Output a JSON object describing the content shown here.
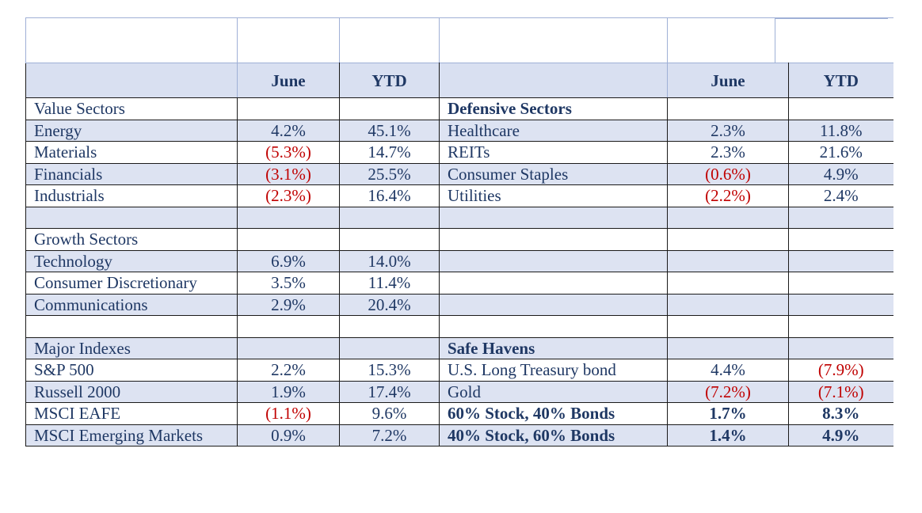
{
  "header": {
    "left_june": "June",
    "left_ytd": "YTD",
    "right_june": "June",
    "right_ytd": "YTD"
  },
  "rows": [
    {
      "shade": false,
      "l": "Value Sectors",
      "lj": "",
      "ly": "",
      "r": "Defensive Sectors",
      "rb": true,
      "rj": "",
      "ry": ""
    },
    {
      "shade": true,
      "l": "Energy",
      "lj": "4.2%",
      "ly": "45.1%",
      "r": "Healthcare",
      "rj": "2.3%",
      "ry": "11.8%"
    },
    {
      "shade": false,
      "l": "Materials",
      "lj": "(5.3%)",
      "ljn": true,
      "ly": "14.7%",
      "r": "REITs",
      "rj": "2.3%",
      "ry": "21.6%"
    },
    {
      "shade": true,
      "l": "Financials",
      "lj": "(3.1%)",
      "ljn": true,
      "ly": "25.5%",
      "r": "Consumer Staples",
      "rj": "(0.6%)",
      "rjn": true,
      "ry": "4.9%"
    },
    {
      "shade": false,
      "l": "Industrials",
      "lj": "(2.3%)",
      "ljn": true,
      "ly": "16.4%",
      "r": "Utilities",
      "rj": "(2.2%)",
      "rjn": true,
      "ry": "2.4%"
    },
    {
      "shade": true,
      "l": "",
      "lj": "",
      "ly": "",
      "r": "",
      "rj": "",
      "ry": ""
    },
    {
      "shade": false,
      "l": "Growth Sectors",
      "lj": "",
      "ly": "",
      "r": "",
      "rj": "",
      "ry": ""
    },
    {
      "shade": true,
      "l": "Technology",
      "lj": "6.9%",
      "ly": "14.0%",
      "r": "",
      "rj": "",
      "ry": ""
    },
    {
      "shade": false,
      "l": "Consumer Discretionary",
      "lj": "3.5%",
      "ly": "11.4%",
      "r": "",
      "rj": "",
      "ry": ""
    },
    {
      "shade": true,
      "l": "Communications",
      "lj": "2.9%",
      "ly": "20.4%",
      "r": "",
      "rj": "",
      "ry": ""
    },
    {
      "shade": false,
      "l": "",
      "lj": "",
      "ly": "",
      "r": "",
      "rj": "",
      "ry": ""
    },
    {
      "shade": true,
      "l": "Major Indexes",
      "lj": "",
      "ly": "",
      "r": "Safe Havens",
      "rb": true,
      "rj": "",
      "ry": ""
    },
    {
      "shade": false,
      "l": "S&P 500",
      "lj": "2.2%",
      "ly": "15.3%",
      "r": "U.S. Long Treasury bond",
      "rj": "4.4%",
      "ry": "(7.9%)",
      "ryn": true
    },
    {
      "shade": true,
      "l": "Russell 2000",
      "lj": "1.9%",
      "ly": "17.4%",
      "r": "Gold",
      "rj": "(7.2%)",
      "rjn": true,
      "ry": "(7.1%)",
      "ryn": true
    },
    {
      "shade": false,
      "l": "MSCI EAFE",
      "lj": "(1.1%)",
      "ljn": true,
      "ly": "9.6%",
      "r": "60% Stock, 40% Bonds",
      "rb": true,
      "rj": "1.7%",
      "ry": "8.3%",
      "rvb": true
    },
    {
      "shade": true,
      "l": "MSCI Emerging Markets",
      "lj": "0.9%",
      "ly": "7.2%",
      "r": "40% Stock, 60% Bonds",
      "rb": true,
      "rj": "1.4%",
      "ry": "4.9%",
      "rvb": true
    }
  ]
}
